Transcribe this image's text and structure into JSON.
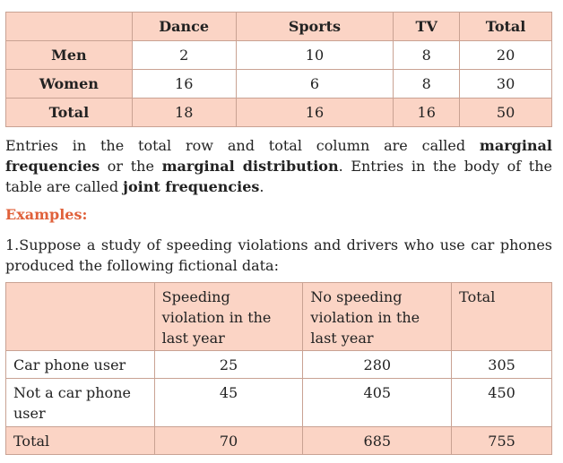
{
  "table1": {
    "headers": [
      "",
      "Dance",
      "Sports",
      "TV",
      "Total"
    ],
    "rows": [
      {
        "label": "Men",
        "values": [
          "2",
          "10",
          "8",
          "20"
        ]
      },
      {
        "label": "Women",
        "values": [
          "16",
          "6",
          "8",
          "30"
        ]
      },
      {
        "label": "Total",
        "values": [
          "18",
          "16",
          "16",
          "50"
        ]
      }
    ]
  },
  "paragraph1": {
    "t1": "Entries in the total row and total column are called ",
    "b1": "marginal frequencies",
    "t2": " or the ",
    "b2": "marginal distribution",
    "t3": ". Entries in the body of the table are called ",
    "b3": "joint frequencies",
    "t4": "."
  },
  "examples_heading": "Examples:",
  "paragraph2": "1.Suppose a study of speeding violations and drivers who use car phones produced the following fictional data:",
  "table2": {
    "headers": [
      "",
      "Speeding violation in the last year",
      "No speeding violation in the last year",
      "Total"
    ],
    "rows": [
      {
        "label": "Car phone user",
        "values": [
          "25",
          "280",
          "305"
        ]
      },
      {
        "label": "Not a car phone user",
        "values": [
          "45",
          "405",
          "450"
        ]
      },
      {
        "label": "Total",
        "values": [
          "70",
          "685",
          "755"
        ]
      }
    ]
  },
  "colors": {
    "header_fill": "#fbd4c5",
    "border": "#c9a293",
    "heading_accent": "#e0613b"
  }
}
